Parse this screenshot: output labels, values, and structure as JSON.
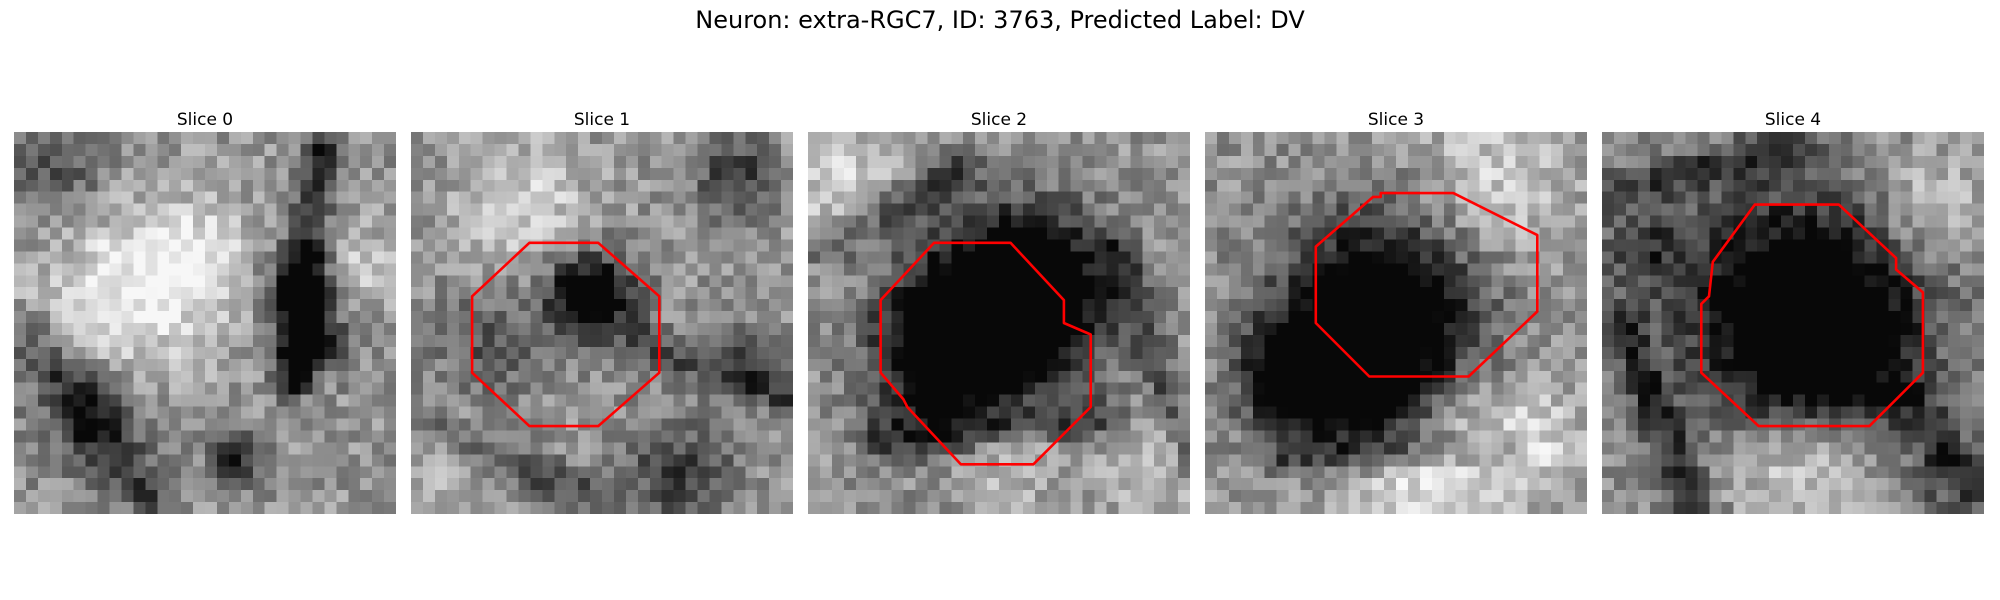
{
  "figure": {
    "title": "Neuron: extra-RGC7, ID: 3763, Predicted Label: DV"
  },
  "panels": [
    {
      "title": "Slice 0",
      "has_contour": false,
      "blobs": [
        {
          "u": 0.3,
          "v": 0.42,
          "r": 0.16,
          "a": 0.35
        },
        {
          "u": 0.47,
          "v": 0.32,
          "r": 0.1,
          "a": 0.25
        },
        {
          "u": 0.76,
          "v": 0.4,
          "r": 0.07,
          "a": -0.55
        },
        {
          "u": 0.78,
          "v": 0.55,
          "r": 0.06,
          "a": -0.5
        },
        {
          "u": 0.2,
          "v": 0.75,
          "r": 0.1,
          "a": -0.3
        },
        {
          "u": 0.58,
          "v": 0.85,
          "r": 0.05,
          "a": -0.45
        },
        {
          "u": 0.12,
          "v": 0.1,
          "r": 0.1,
          "a": -0.25
        },
        {
          "u": 0.88,
          "v": 0.35,
          "r": 0.08,
          "a": 0.25
        }
      ],
      "lines": [
        {
          "u0": 0.8,
          "v0": 0.05,
          "u1": 0.73,
          "v1": 0.65,
          "w": 0.035,
          "a": -0.45
        },
        {
          "u0": 0.05,
          "v0": 0.55,
          "u1": 0.35,
          "v1": 0.95,
          "w": 0.05,
          "a": -0.3
        }
      ]
    },
    {
      "title": "Slice 1",
      "has_contour": true,
      "contour": [
        [
          0.31,
          0.29
        ],
        [
          0.49,
          0.29
        ],
        [
          0.65,
          0.43
        ],
        [
          0.65,
          0.63
        ],
        [
          0.49,
          0.77
        ],
        [
          0.31,
          0.77
        ],
        [
          0.16,
          0.63
        ],
        [
          0.16,
          0.43
        ]
      ],
      "blobs": [
        {
          "u": 0.47,
          "v": 0.43,
          "r": 0.08,
          "a": -0.8
        },
        {
          "u": 0.2,
          "v": 0.55,
          "r": 0.1,
          "a": -0.25
        },
        {
          "u": 0.85,
          "v": 0.12,
          "r": 0.07,
          "a": -0.4
        },
        {
          "u": 0.9,
          "v": 0.6,
          "r": 0.06,
          "a": -0.3
        },
        {
          "u": 0.7,
          "v": 0.9,
          "r": 0.1,
          "a": -0.35
        },
        {
          "u": 0.3,
          "v": 0.2,
          "r": 0.12,
          "a": 0.25
        },
        {
          "u": 0.1,
          "v": 0.85,
          "r": 0.08,
          "a": 0.2
        }
      ],
      "lines": [
        {
          "u0": 0.0,
          "v0": 0.75,
          "u1": 0.45,
          "v1": 0.95,
          "w": 0.04,
          "a": -0.3
        },
        {
          "u0": 0.6,
          "v0": 0.55,
          "u1": 1.0,
          "v1": 0.7,
          "w": 0.035,
          "a": -0.3
        }
      ]
    },
    {
      "title": "Slice 2",
      "has_contour": true,
      "contour": [
        [
          0.33,
          0.29
        ],
        [
          0.53,
          0.29
        ],
        [
          0.67,
          0.44
        ],
        [
          0.67,
          0.5
        ],
        [
          0.74,
          0.53
        ],
        [
          0.74,
          0.72
        ],
        [
          0.59,
          0.87
        ],
        [
          0.4,
          0.87
        ],
        [
          0.26,
          0.72
        ],
        [
          0.25,
          0.7
        ],
        [
          0.19,
          0.63
        ],
        [
          0.19,
          0.44
        ]
      ],
      "blobs": [
        {
          "u": 0.48,
          "v": 0.48,
          "r": 0.18,
          "a": -0.75
        },
        {
          "u": 0.37,
          "v": 0.6,
          "r": 0.12,
          "a": -0.55
        },
        {
          "u": 0.6,
          "v": 0.4,
          "r": 0.12,
          "a": -0.55
        },
        {
          "u": 0.52,
          "v": 0.82,
          "r": 0.1,
          "a": 0.3
        },
        {
          "u": 0.1,
          "v": 0.15,
          "r": 0.12,
          "a": 0.25
        },
        {
          "u": 0.9,
          "v": 0.85,
          "r": 0.1,
          "a": 0.2
        }
      ],
      "lines": [
        {
          "u0": 0.05,
          "v0": 0.3,
          "u1": 0.4,
          "v1": 0.1,
          "w": 0.04,
          "a": -0.3
        },
        {
          "u0": 0.2,
          "v0": 0.8,
          "u1": 0.8,
          "v1": 0.75,
          "w": 0.04,
          "a": -0.3
        },
        {
          "u0": 0.8,
          "v0": 0.3,
          "u1": 1.0,
          "v1": 0.85,
          "w": 0.035,
          "a": -0.28
        }
      ]
    },
    {
      "title": "Slice 3",
      "has_contour": true,
      "contour": [
        [
          0.46,
          0.16
        ],
        [
          0.65,
          0.16
        ],
        [
          0.87,
          0.27
        ],
        [
          0.87,
          0.47
        ],
        [
          0.69,
          0.64
        ],
        [
          0.43,
          0.64
        ],
        [
          0.29,
          0.5
        ],
        [
          0.29,
          0.3
        ],
        [
          0.44,
          0.17
        ],
        [
          0.46,
          0.17
        ]
      ],
      "blobs": [
        {
          "u": 0.48,
          "v": 0.45,
          "r": 0.18,
          "a": -0.7
        },
        {
          "u": 0.35,
          "v": 0.62,
          "r": 0.14,
          "a": -0.6
        },
        {
          "u": 0.22,
          "v": 0.65,
          "r": 0.08,
          "a": -0.6
        },
        {
          "u": 0.45,
          "v": 0.68,
          "r": 0.1,
          "a": -0.45
        },
        {
          "u": 0.55,
          "v": 0.88,
          "r": 0.16,
          "a": 0.35
        },
        {
          "u": 0.75,
          "v": 0.15,
          "r": 0.15,
          "a": 0.25
        },
        {
          "u": 0.85,
          "v": 0.8,
          "r": 0.1,
          "a": 0.25
        }
      ],
      "lines": [
        {
          "u0": 0.2,
          "v0": 0.85,
          "u1": 0.8,
          "v1": 0.82,
          "w": 0.03,
          "a": -0.25
        }
      ]
    },
    {
      "title": "Slice 4",
      "has_contour": true,
      "contour": [
        [
          0.4,
          0.19
        ],
        [
          0.62,
          0.19
        ],
        [
          0.77,
          0.33
        ],
        [
          0.77,
          0.36
        ],
        [
          0.84,
          0.42
        ],
        [
          0.84,
          0.63
        ],
        [
          0.7,
          0.77
        ],
        [
          0.41,
          0.77
        ],
        [
          0.26,
          0.63
        ],
        [
          0.26,
          0.45
        ],
        [
          0.28,
          0.43
        ],
        [
          0.29,
          0.34
        ]
      ],
      "blobs": [
        {
          "u": 0.52,
          "v": 0.48,
          "r": 0.22,
          "a": -0.85
        },
        {
          "u": 0.6,
          "v": 0.6,
          "r": 0.12,
          "a": -0.4
        },
        {
          "u": 0.52,
          "v": 0.85,
          "r": 0.14,
          "a": 0.35
        },
        {
          "u": 0.85,
          "v": 0.2,
          "r": 0.1,
          "a": 0.25
        },
        {
          "u": 0.1,
          "v": 0.3,
          "r": 0.08,
          "a": -0.3
        },
        {
          "u": 0.9,
          "v": 0.9,
          "r": 0.08,
          "a": -0.25
        }
      ],
      "lines": [
        {
          "u0": 0.0,
          "v0": 0.15,
          "u1": 0.5,
          "v1": 0.05,
          "w": 0.04,
          "a": -0.3
        },
        {
          "u0": 0.05,
          "v0": 0.5,
          "u1": 0.25,
          "v1": 1.0,
          "w": 0.04,
          "a": -0.35
        },
        {
          "u0": 0.8,
          "v0": 0.7,
          "u1": 1.0,
          "v1": 0.95,
          "w": 0.04,
          "a": -0.28
        }
      ]
    }
  ],
  "colors": {
    "contour": "#ff0000",
    "background": "#ffffff"
  }
}
